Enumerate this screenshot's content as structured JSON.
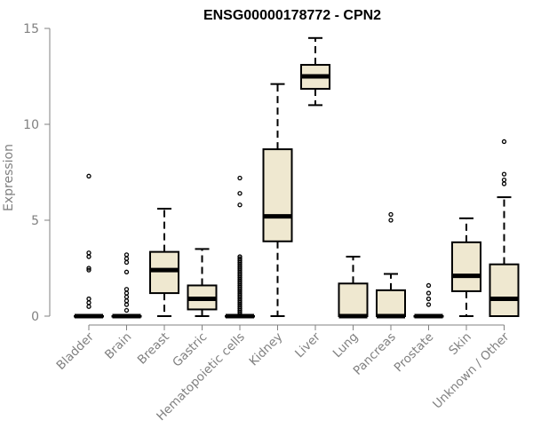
{
  "chart_data": {
    "type": "boxplot",
    "title": "ENSG00000178772 - CPN2",
    "ylabel": "Expression",
    "xlabel": "",
    "ylim": [
      0,
      15
    ],
    "yticks": [
      0,
      5,
      10,
      15
    ],
    "box_color": "#efe8d0",
    "categories": [
      "Bladder",
      "Brain",
      "Breast",
      "Gastric",
      "Hematopoietic cells",
      "Kidney",
      "Liver",
      "Lung",
      "Pancreas",
      "Prostate",
      "Skin",
      "Unknown / Other"
    ],
    "boxes": [
      {
        "category": "Bladder",
        "min": 0,
        "q1": 0,
        "median": 0,
        "q3": 0,
        "max": 0,
        "outliers": [
          0.5,
          0.7,
          0.9,
          2.4,
          2.5,
          3.1,
          3.3,
          7.3
        ]
      },
      {
        "category": "Brain",
        "min": 0,
        "q1": 0,
        "median": 0,
        "q3": 0,
        "max": 0,
        "outliers": [
          0.3,
          0.6,
          0.8,
          1.0,
          1.2,
          1.4,
          2.3,
          2.8,
          3.0,
          3.2
        ]
      },
      {
        "category": "Breast",
        "min": 0,
        "q1": 1.2,
        "median": 2.4,
        "q3": 3.35,
        "max": 5.6,
        "outliers": []
      },
      {
        "category": "Gastric",
        "min": 0,
        "q1": 0.35,
        "median": 0.9,
        "q3": 1.6,
        "max": 3.5,
        "outliers": []
      },
      {
        "category": "Hematopoietic cells",
        "min": 0,
        "q1": 0,
        "median": 0,
        "q3": 0,
        "max": 0,
        "outliers": [
          0.1,
          0.2,
          0.3,
          0.4,
          0.5,
          0.6,
          0.7,
          0.8,
          0.9,
          1.0,
          1.1,
          1.2,
          1.3,
          1.4,
          1.5,
          1.6,
          1.7,
          1.8,
          1.9,
          2.0,
          2.1,
          2.2,
          2.3,
          2.4,
          2.5,
          2.6,
          2.7,
          2.8,
          2.9,
          3.0,
          3.1,
          5.8,
          6.4,
          7.2
        ]
      },
      {
        "category": "Kidney",
        "min": 0,
        "q1": 3.9,
        "median": 5.2,
        "q3": 8.7,
        "max": 12.1,
        "outliers": []
      },
      {
        "category": "Liver",
        "min": 11.0,
        "q1": 11.85,
        "median": 12.5,
        "q3": 13.1,
        "max": 14.5,
        "outliers": []
      },
      {
        "category": "Lung",
        "min": 0,
        "q1": 0,
        "median": 0,
        "q3": 1.7,
        "max": 3.1,
        "outliers": []
      },
      {
        "category": "Pancreas",
        "min": 0,
        "q1": 0,
        "median": 0,
        "q3": 1.35,
        "max": 2.2,
        "outliers": [
          5.0,
          5.3
        ]
      },
      {
        "category": "Prostate",
        "min": 0,
        "q1": 0,
        "median": 0,
        "q3": 0,
        "max": 0,
        "outliers": [
          0.6,
          0.9,
          1.2,
          1.6
        ]
      },
      {
        "category": "Skin",
        "min": 0,
        "q1": 1.3,
        "median": 2.1,
        "q3": 3.85,
        "max": 5.1,
        "outliers": []
      },
      {
        "category": "Unknown / Other",
        "min": 0,
        "q1": 0,
        "median": 0.9,
        "q3": 2.7,
        "max": 6.2,
        "outliers": [
          6.9,
          7.1,
          7.4,
          9.1
        ]
      }
    ]
  }
}
